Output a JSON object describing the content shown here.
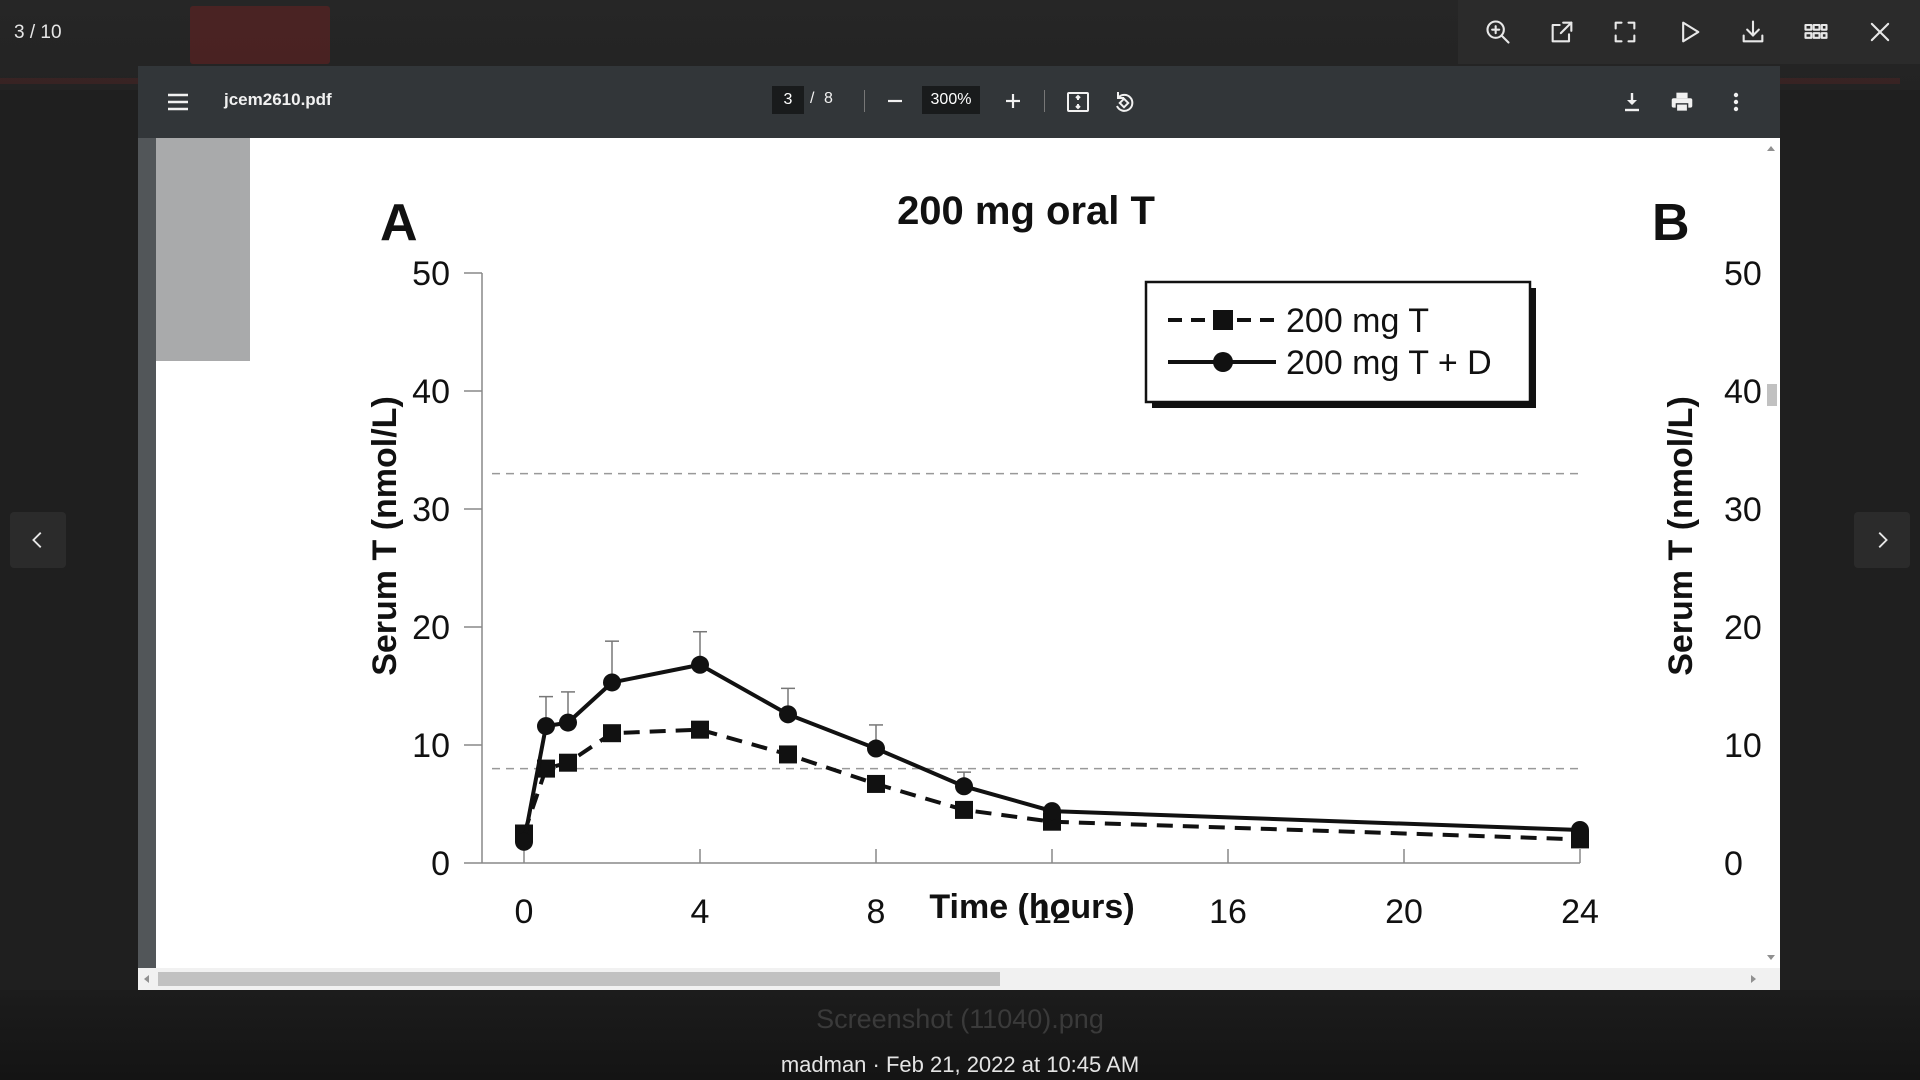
{
  "gallery": {
    "counter": "3 / 10",
    "ghost_filename": "Screenshot (11040).png",
    "caption": "madman · Feb 21, 2022 at 10:45 AM",
    "tools": [
      "zoom-in-icon",
      "open-external-icon",
      "fullscreen-icon",
      "slideshow-play-icon",
      "download-icon",
      "grid-icon",
      "close-icon"
    ]
  },
  "pdf": {
    "filename": "jcem2610.pdf",
    "page_current": "3",
    "page_separator": "/",
    "page_total": "8",
    "zoom": "300%"
  },
  "chart_data": {
    "type": "line",
    "title": "200 mg oral T",
    "panel_label": "A",
    "panel_label_b": "B",
    "xlabel": "Time (hours)",
    "ylabel": "Serum T (nmol/L)",
    "ylabel_b": "Serum T (nmol/L)",
    "x_ticks": [
      0,
      4,
      8,
      12,
      16,
      20,
      24
    ],
    "y_ticks": [
      0,
      10,
      20,
      30,
      40,
      50
    ],
    "y_ticks_b": [
      "0",
      "10",
      "20",
      "30",
      "40",
      "50"
    ],
    "xlim": [
      0,
      24
    ],
    "ylim": [
      0,
      50
    ],
    "reference_lines": [
      33,
      8
    ],
    "series": [
      {
        "name": "200 mg T",
        "style": "dashed",
        "marker": "square",
        "x": [
          0,
          0.5,
          1,
          2,
          4,
          6,
          8,
          10,
          12,
          24
        ],
        "y": [
          2.5,
          8,
          8.5,
          11,
          11.3,
          9.2,
          6.7,
          4.5,
          3.5,
          2
        ]
      },
      {
        "name": "200 mg T + D",
        "style": "solid",
        "marker": "circle",
        "x": [
          0,
          0.5,
          1,
          2,
          4,
          6,
          8,
          10,
          12,
          24
        ],
        "y": [
          1.8,
          11.6,
          11.9,
          15.3,
          16.8,
          12.6,
          9.7,
          6.5,
          4.4,
          2.8
        ],
        "err": [
          0,
          2.5,
          2.6,
          3.5,
          2.8,
          2.2,
          2.0,
          1.2,
          0,
          0
        ]
      }
    ],
    "legend_position": "top-right"
  }
}
